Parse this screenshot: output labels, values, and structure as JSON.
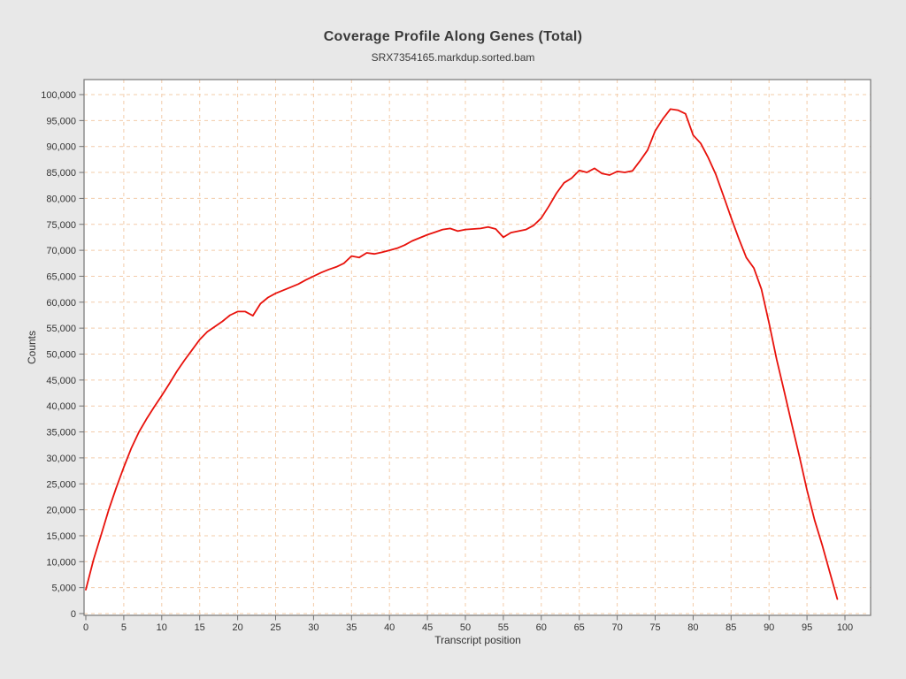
{
  "window": {
    "page_background": "#e8e8e8"
  },
  "chart_data": {
    "type": "line",
    "title": "Coverage Profile Along Genes (Total)",
    "subtitle": "SRX7354165.markdup.sorted.bam",
    "xlabel": "Transcript position",
    "ylabel": "Counts",
    "xlim": [
      0,
      100
    ],
    "ylim": [
      0,
      100000
    ],
    "x_tick_step": 5,
    "y_tick_step": 5000,
    "x_ticks": [
      0,
      5,
      10,
      15,
      20,
      25,
      30,
      35,
      40,
      45,
      50,
      55,
      60,
      65,
      70,
      75,
      80,
      85,
      90,
      95,
      100
    ],
    "y_ticks": [
      0,
      5000,
      10000,
      15000,
      20000,
      25000,
      30000,
      35000,
      40000,
      45000,
      50000,
      55000,
      60000,
      65000,
      70000,
      75000,
      80000,
      85000,
      90000,
      95000,
      100000
    ],
    "grid": "dashed",
    "legend_position": "none",
    "series": [
      {
        "name": "SRX7354165.markdup.sorted.bam",
        "color": "#e8120c",
        "x": [
          0,
          1,
          2,
          3,
          4,
          5,
          6,
          7,
          8,
          9,
          10,
          11,
          12,
          13,
          14,
          15,
          16,
          17,
          18,
          19,
          20,
          21,
          22,
          23,
          24,
          25,
          26,
          27,
          28,
          29,
          30,
          31,
          32,
          33,
          34,
          35,
          36,
          37,
          38,
          39,
          40,
          41,
          42,
          43,
          44,
          45,
          46,
          47,
          48,
          49,
          50,
          51,
          52,
          53,
          54,
          55,
          56,
          57,
          58,
          59,
          60,
          61,
          62,
          63,
          64,
          65,
          66,
          67,
          68,
          69,
          70,
          71,
          72,
          73,
          74,
          75,
          76,
          77,
          78,
          79,
          80,
          81,
          82,
          83,
          84,
          85,
          86,
          87,
          88,
          89,
          90,
          91,
          92,
          93,
          94,
          95,
          96,
          97,
          98,
          99
        ],
        "values": [
          4600,
          10300,
          15100,
          19900,
          24200,
          28200,
          31900,
          35000,
          37500,
          39800,
          42000,
          44300,
          46700,
          48800,
          50800,
          52800,
          54300,
          55300,
          56300,
          57500,
          58200,
          58200,
          57400,
          59700,
          60900,
          61700,
          62300,
          62900,
          63500,
          64300,
          65000,
          65700,
          66300,
          66800,
          67500,
          68900,
          68600,
          69500,
          69300,
          69600,
          70000,
          70400,
          71000,
          71800,
          72400,
          73000,
          73500,
          74000,
          74200,
          73700,
          74000,
          74100,
          74200,
          74500,
          74100,
          72500,
          73400,
          73700,
          74000,
          74800,
          76200,
          78500,
          81000,
          83000,
          83900,
          85400,
          85000,
          85800,
          84800,
          84500,
          85200,
          85000,
          85300,
          87200,
          89300,
          93000,
          95300,
          97200,
          97000,
          96300,
          92200,
          90600,
          87800,
          84600,
          80500,
          76300,
          72300,
          68600,
          66600,
          62500,
          56000,
          49000,
          42800,
          36500,
          30300,
          23800,
          18000,
          13200,
          8000,
          2800
        ]
      }
    ],
    "colors": {
      "line": "#e8120c",
      "grid": "#f3ccaa",
      "plot_background": "#ffffff",
      "plot_border": "#7f7f7f",
      "tick": "#707070",
      "tick_text": "#333333"
    }
  }
}
